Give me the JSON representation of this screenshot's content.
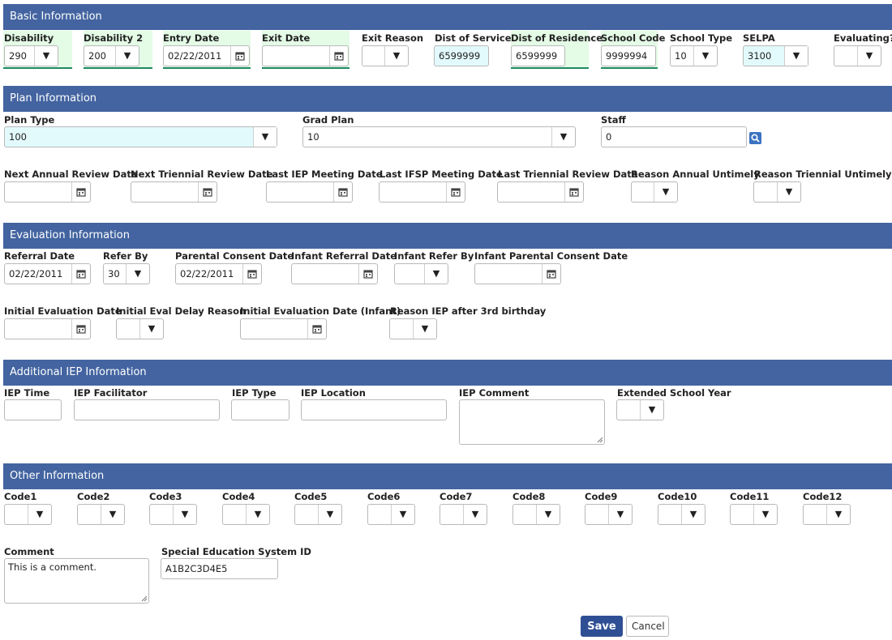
{
  "sections": {
    "basic": "Basic Information",
    "plan": "Plan Information",
    "evaluation": "Evaluation Information",
    "additional_iep": "Additional IEP Information",
    "other": "Other Information"
  },
  "basic": {
    "disability": {
      "label": "Disability",
      "value": "290"
    },
    "disability2": {
      "label": "Disability 2",
      "value": "200"
    },
    "entry_date": {
      "label": "Entry Date",
      "value": "02/22/2011"
    },
    "exit_date": {
      "label": "Exit Date",
      "value": ""
    },
    "exit_reason": {
      "label": "Exit Reason",
      "value": ""
    },
    "dist_of_service": {
      "label": "Dist of Service",
      "value": "6599999"
    },
    "dist_of_residence": {
      "label": "Dist of Residence",
      "value": "6599999"
    },
    "school_code": {
      "label": "School Code",
      "value": "9999994"
    },
    "school_type": {
      "label": "School Type",
      "value": "10"
    },
    "selpa": {
      "label": "SELPA",
      "value": "3100"
    },
    "evaluating": {
      "label": "Evaluating?",
      "value": ""
    }
  },
  "plan": {
    "plan_type": {
      "label": "Plan Type",
      "value": "100"
    },
    "grad_plan": {
      "label": "Grad Plan",
      "value": "10"
    },
    "staff": {
      "label": "Staff",
      "value": "0"
    },
    "next_annual_review": {
      "label": "Next Annual Review Date",
      "value": ""
    },
    "next_triennial_review": {
      "label": "Next Triennial Review Date",
      "value": ""
    },
    "last_iep_meeting": {
      "label": "Last IEP Meeting Date",
      "value": ""
    },
    "last_ifsp_meeting": {
      "label": "Last IFSP Meeting Date",
      "value": ""
    },
    "last_triennial_review": {
      "label": "Last Triennial Review Date",
      "value": ""
    },
    "reason_annual_untimely": {
      "label": "Reason Annual Untimely",
      "value": ""
    },
    "reason_triennial_untimely": {
      "label": "Reason Triennial Untimely",
      "value": ""
    }
  },
  "evaluation": {
    "referral_date": {
      "label": "Referral Date",
      "value": "02/22/2011"
    },
    "refer_by": {
      "label": "Refer By",
      "value": "30"
    },
    "parental_consent_date": {
      "label": "Parental Consent Date",
      "value": "02/22/2011"
    },
    "infant_referral_date": {
      "label": "Infant Referral Date",
      "value": ""
    },
    "infant_refer_by": {
      "label": "Infant Refer By",
      "value": ""
    },
    "infant_parental_consent": {
      "label": "Infant Parental Consent Date",
      "value": ""
    },
    "initial_eval_date": {
      "label": "Initial Evaluation Date",
      "value": ""
    },
    "initial_eval_delay": {
      "label": "Initial Eval Delay Reason",
      "value": ""
    },
    "initial_eval_date_infant": {
      "label": "Initial Evaluation Date (Infant)",
      "value": ""
    },
    "reason_iep_after_3rd": {
      "label": "Reason IEP after 3rd birthday",
      "value": ""
    }
  },
  "additional_iep": {
    "iep_time": {
      "label": "IEP Time",
      "value": ""
    },
    "iep_facilitator": {
      "label": "IEP Facilitator",
      "value": ""
    },
    "iep_type": {
      "label": "IEP Type",
      "value": ""
    },
    "iep_location": {
      "label": "IEP Location",
      "value": ""
    },
    "iep_comment": {
      "label": "IEP Comment",
      "value": ""
    },
    "extended_school_year": {
      "label": "Extended School Year",
      "value": ""
    }
  },
  "other": {
    "codes": [
      "Code1",
      "Code2",
      "Code3",
      "Code4",
      "Code5",
      "Code6",
      "Code7",
      "Code8",
      "Code9",
      "Code10",
      "Code11",
      "Code12"
    ],
    "comment": {
      "label": "Comment",
      "value": "This is a comment."
    },
    "sped_system_id": {
      "label": "Special Education System ID",
      "value": "A1B2C3D4E5"
    }
  },
  "buttons": {
    "save": "Save",
    "cancel": "Cancel"
  },
  "icons": {
    "dropdown": "▼"
  },
  "colors": {
    "header": "#4364a0",
    "highlight_green": "#e4fbe6",
    "highlight_blue": "#e3fafc",
    "save_button": "#2f4f94"
  }
}
